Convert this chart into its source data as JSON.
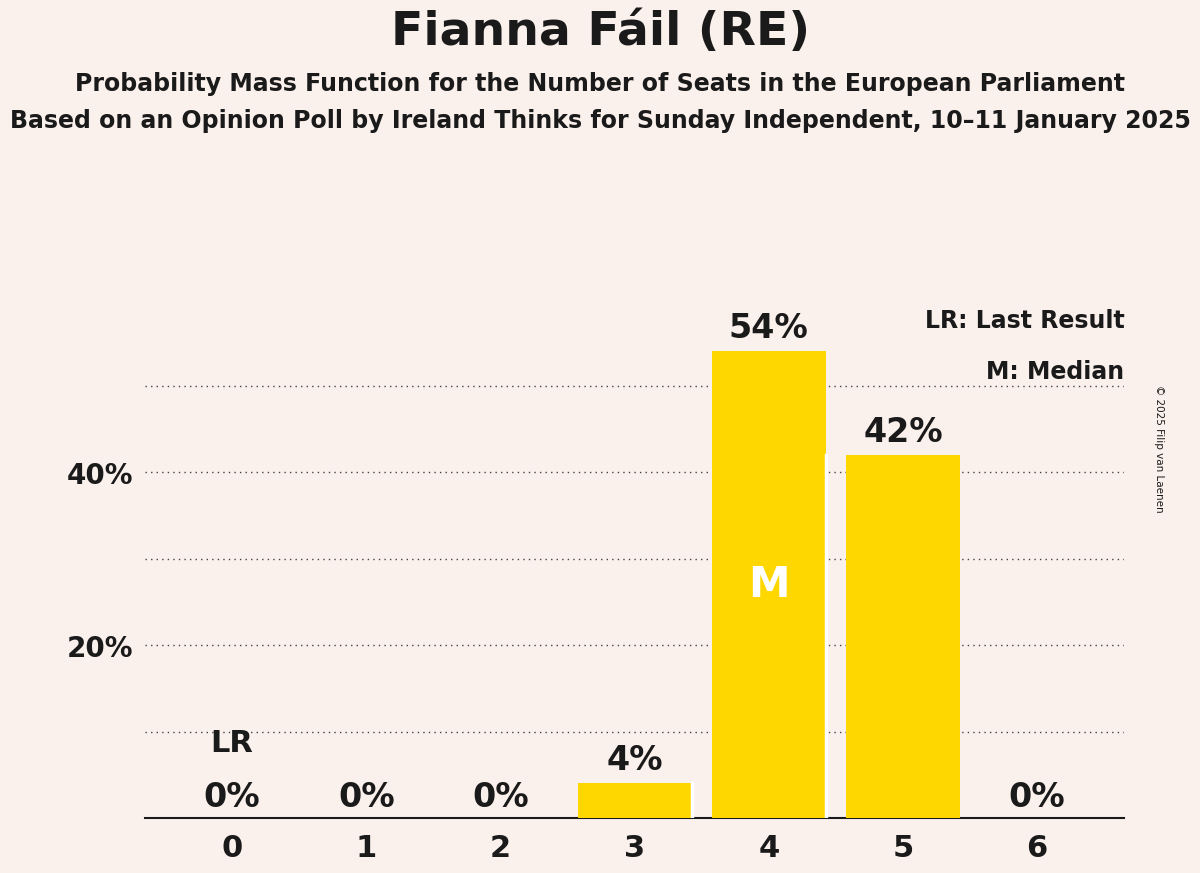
{
  "title": "Fianna Fáil (RE)",
  "subtitle1": "Probability Mass Function for the Number of Seats in the European Parliament",
  "subtitle2": "Based on an Opinion Poll by Ireland Thinks for Sunday Independent, 10–11 January 2025",
  "copyright": "© 2025 Filip van Laenen",
  "categories": [
    0,
    1,
    2,
    3,
    4,
    5,
    6
  ],
  "values": [
    0,
    0,
    0,
    4,
    54,
    42,
    0
  ],
  "bar_color": "#FFD700",
  "background_color": "#FAF0EC",
  "text_color": "#1a1a1a",
  "ylim": [
    0,
    62
  ],
  "median_seat": 4,
  "lr_seat": 0,
  "lr_label": "LR",
  "median_label": "M",
  "legend_lr": "LR: Last Result",
  "legend_m": "M: Median",
  "dotted_line_color": "#444444",
  "grid_y_values": [
    10,
    20,
    30,
    40,
    50
  ],
  "yticks": [
    20,
    40
  ],
  "ytick_labels": [
    "20%",
    "40%"
  ],
  "title_fontsize": 34,
  "subtitle_fontsize": 17,
  "tick_fontsize": 20,
  "bar_label_fontsize": 24,
  "median_fontsize": 30,
  "lr_fontsize": 22,
  "legend_fontsize": 17
}
